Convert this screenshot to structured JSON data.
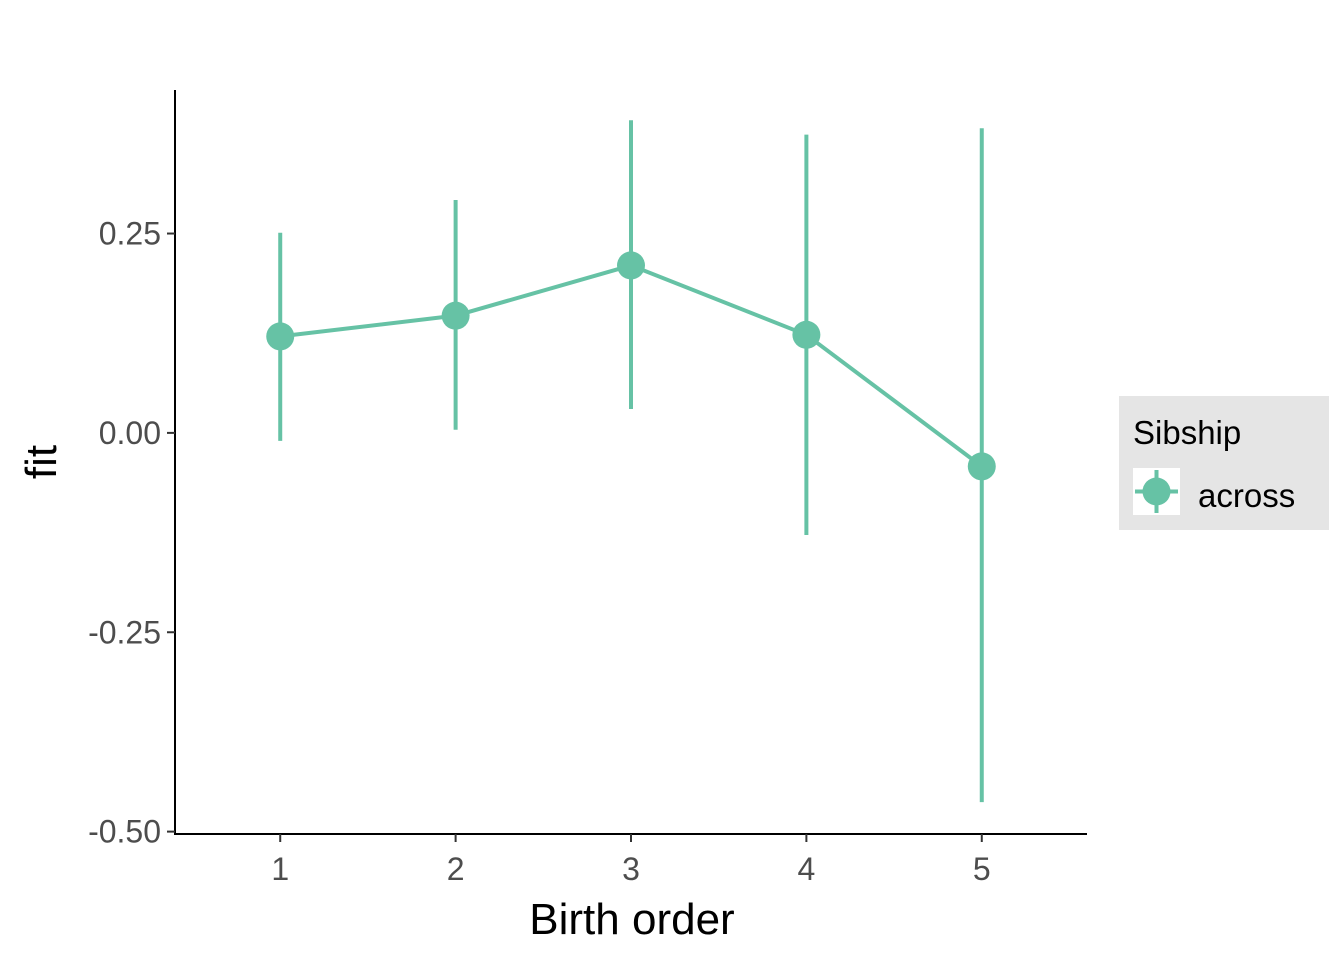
{
  "chart_data": {
    "type": "line",
    "x": [
      1,
      2,
      3,
      4,
      5
    ],
    "series": [
      {
        "name": "across",
        "color": "#66c2a5",
        "values": [
          0.121,
          0.147,
          0.21,
          0.123,
          -0.042
        ],
        "lower": [
          -0.01,
          0.004,
          0.03,
          -0.128,
          -0.463
        ],
        "upper": [
          0.251,
          0.292,
          0.392,
          0.374,
          0.382
        ]
      }
    ],
    "xlabel": "Birth order",
    "ylabel": "fit",
    "xticks": [
      "1",
      "2",
      "3",
      "4",
      "5"
    ],
    "yticks": [
      "-0.50",
      "-0.25",
      "0.00",
      "0.25"
    ],
    "xlim": [
      0.4,
      5.6
    ],
    "ylim": [
      -0.503,
      0.43
    ],
    "legend": {
      "title": "Sibship",
      "placement": "right"
    },
    "grid": false
  }
}
